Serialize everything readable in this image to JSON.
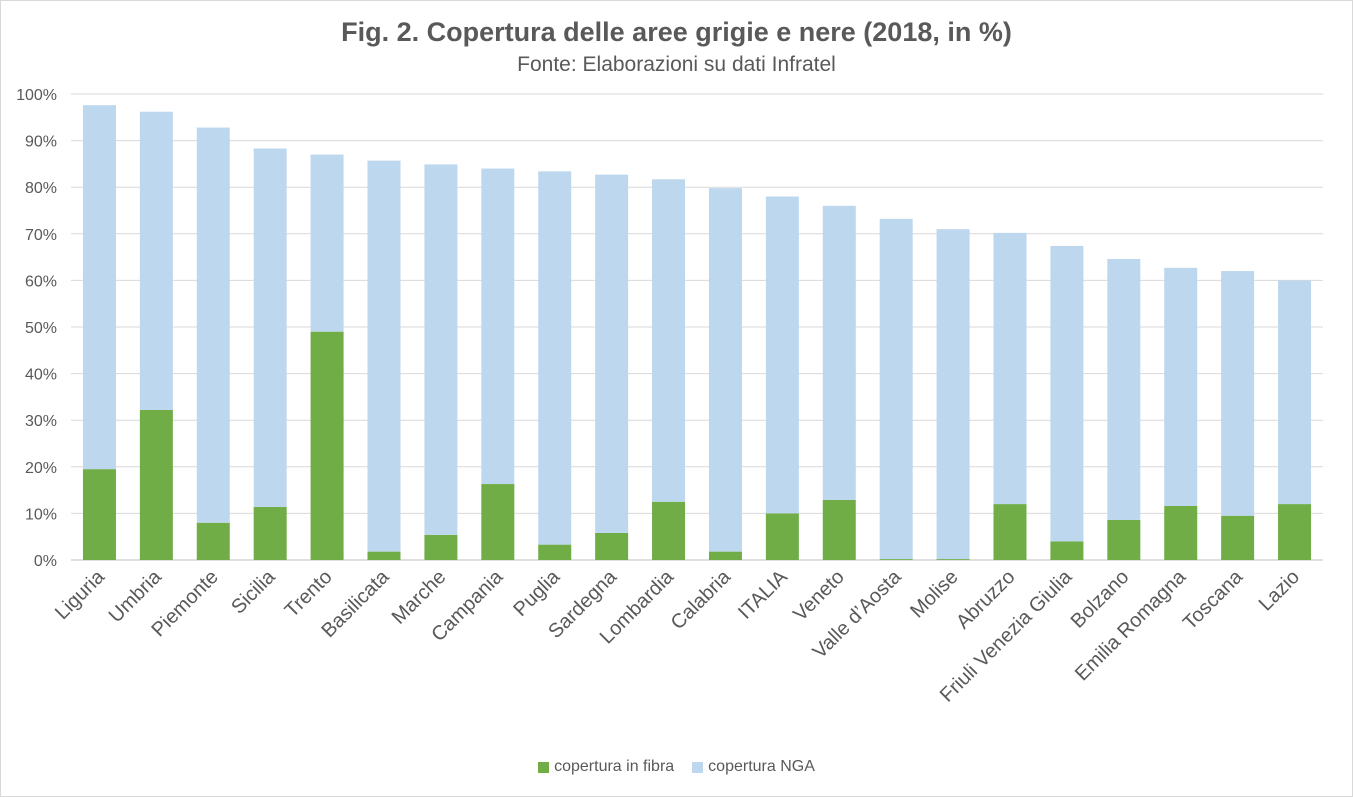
{
  "chart_data": {
    "type": "bar",
    "stacked": true,
    "title": "Fig. 2. Copertura delle aree grigie e nere (2018, in %)",
    "subtitle": "Fonte: Elaborazioni su dati Infratel",
    "xlabel": "",
    "ylabel": "",
    "ylim": [
      0,
      100
    ],
    "yticks": [
      "0%",
      "10%",
      "20%",
      "30%",
      "40%",
      "50%",
      "60%",
      "70%",
      "80%",
      "90%",
      "100%"
    ],
    "grid": true,
    "legend_position": "bottom",
    "categories": [
      "Liguria",
      "Umbria",
      "Piemonte",
      "Sicilia",
      "Trento",
      "Basilicata",
      "Marche",
      "Campania",
      "Puglia",
      "Sardegna",
      "Lombardia",
      "Calabria",
      "ITALIA",
      "Veneto",
      "Valle d’Aosta",
      "Molise",
      "Abruzzo",
      "Friuli Venezia Giulia",
      "Bolzano",
      "Emilia Romagna",
      "Toscana",
      "Lazio"
    ],
    "series": [
      {
        "name": "copertura in fibra",
        "color": "#70ad47",
        "values": [
          19.5,
          32.2,
          8.0,
          11.4,
          49.0,
          1.8,
          5.4,
          16.3,
          3.3,
          5.8,
          12.5,
          1.8,
          10.0,
          12.9,
          0.2,
          0.2,
          12.0,
          4.0,
          8.6,
          11.6,
          9.5,
          12.0
        ]
      },
      {
        "name": "copertura NGA",
        "color": "#bdd7ee",
        "values": [
          78.1,
          64.0,
          84.8,
          76.9,
          38.0,
          83.9,
          79.5,
          67.7,
          80.1,
          76.9,
          69.2,
          78.0,
          68.0,
          63.1,
          73.0,
          70.8,
          58.2,
          63.4,
          56.0,
          51.1,
          52.5,
          48.0
        ]
      }
    ]
  }
}
